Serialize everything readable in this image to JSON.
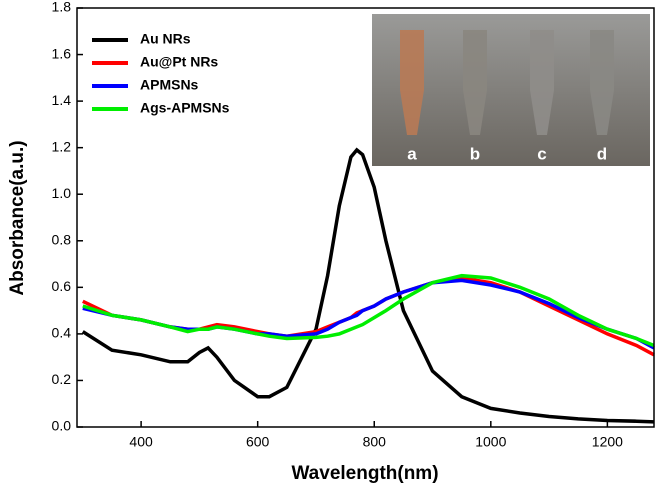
{
  "chart_data": {
    "type": "line",
    "x_label": "Wavelength(nm)",
    "y_label": "Absorbance(a.u.)",
    "x": [
      300,
      350,
      400,
      450,
      480,
      500,
      515,
      530,
      560,
      600,
      620,
      650,
      700,
      720,
      740,
      760,
      770,
      780,
      800,
      820,
      850,
      900,
      950,
      1000,
      1050,
      1100,
      1150,
      1200,
      1250,
      1280
    ],
    "series": [
      {
        "name": "Au NRs",
        "color": "#000000",
        "values": [
          0.41,
          0.33,
          0.31,
          0.28,
          0.28,
          0.32,
          0.34,
          0.3,
          0.2,
          0.13,
          0.13,
          0.17,
          0.42,
          0.65,
          0.95,
          1.16,
          1.19,
          1.17,
          1.03,
          0.8,
          0.5,
          0.24,
          0.13,
          0.08,
          0.06,
          0.045,
          0.035,
          0.028,
          0.025,
          0.022
        ]
      },
      {
        "name": "Au@Pt NRs",
        "color": "#ff0000",
        "values": [
          0.54,
          0.48,
          0.46,
          0.43,
          0.42,
          0.42,
          0.43,
          0.44,
          0.43,
          0.41,
          0.4,
          0.39,
          0.41,
          0.43,
          0.45,
          0.47,
          0.49,
          0.5,
          0.52,
          0.55,
          0.58,
          0.62,
          0.64,
          0.62,
          0.58,
          0.52,
          0.46,
          0.4,
          0.35,
          0.31
        ]
      },
      {
        "name": "APMSNs",
        "color": "#0000ff",
        "values": [
          0.51,
          0.48,
          0.46,
          0.43,
          0.42,
          0.42,
          0.42,
          0.43,
          0.42,
          0.4,
          0.4,
          0.39,
          0.4,
          0.42,
          0.45,
          0.47,
          0.48,
          0.5,
          0.52,
          0.55,
          0.58,
          0.62,
          0.63,
          0.61,
          0.58,
          0.53,
          0.47,
          0.42,
          0.38,
          0.34
        ]
      },
      {
        "name": "Ags-APMSNs",
        "color": "#00ee00",
        "values": [
          0.52,
          0.48,
          0.46,
          0.43,
          0.41,
          0.42,
          0.42,
          0.43,
          0.42,
          0.4,
          0.39,
          0.38,
          0.385,
          0.39,
          0.4,
          0.42,
          0.43,
          0.44,
          0.47,
          0.5,
          0.55,
          0.62,
          0.65,
          0.64,
          0.6,
          0.55,
          0.48,
          0.42,
          0.38,
          0.35
        ]
      }
    ],
    "xlim": [
      290,
      1280
    ],
    "xticks": [
      400,
      600,
      800,
      1000,
      1200
    ],
    "ylim": [
      0,
      1.8
    ],
    "yticks": [
      {
        "value": 0,
        "label": "0.0"
      },
      0.2,
      0.4,
      0.6,
      0.8,
      {
        "value": 1,
        "label": "1.0"
      },
      1.2,
      1.4,
      1.6,
      1.8
    ],
    "legend": "upper left",
    "inset_labels": [
      "a",
      "b",
      "c",
      "d"
    ]
  }
}
